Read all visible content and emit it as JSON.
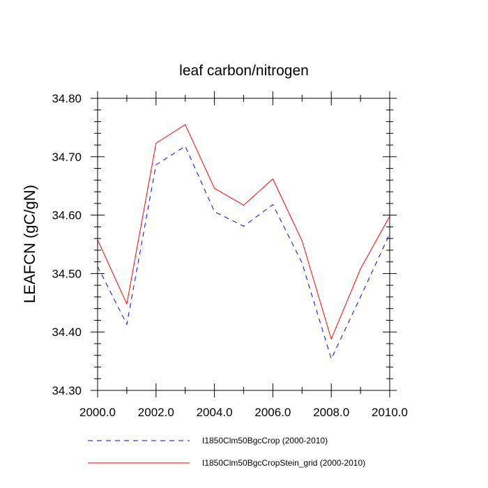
{
  "chart_data": {
    "type": "line",
    "title": "leaf carbon/nitrogen",
    "xlabel": "",
    "ylabel": "LEAFCN  (gC/gN)",
    "xlim": [
      2000,
      2010
    ],
    "ylim": [
      34.3,
      34.8
    ],
    "x_ticks": [
      "2000.0",
      "2002.0",
      "2004.0",
      "2006.0",
      "2008.0",
      "2010.0"
    ],
    "y_ticks": [
      "34.30",
      "34.40",
      "34.50",
      "34.60",
      "34.70",
      "34.80"
    ],
    "x": [
      2000,
      2001,
      2002,
      2003,
      2004,
      2005,
      2006,
      2007,
      2008,
      2009,
      2010
    ],
    "series": [
      {
        "name": "I1850Clm50BgcCrop (2000-2010)",
        "color": "#0000ff",
        "style": "dashed",
        "values": [
          34.512,
          34.413,
          34.686,
          34.718,
          34.606,
          34.581,
          34.618,
          34.518,
          34.354,
          34.46,
          34.568
        ]
      },
      {
        "name": "I1850Clm50BgcCropStein_grid (2000-2010)",
        "color": "#ff0000",
        "style": "solid",
        "values": [
          34.558,
          34.448,
          34.723,
          34.755,
          34.646,
          34.617,
          34.662,
          34.556,
          34.388,
          34.508,
          34.598
        ]
      }
    ],
    "grid": false,
    "legend_position": "bottom"
  }
}
